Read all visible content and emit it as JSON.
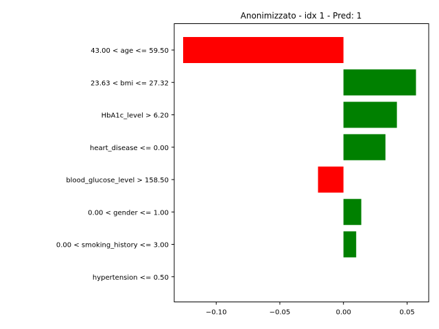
{
  "chart_data": {
    "type": "bar",
    "orientation": "horizontal",
    "title": "Anonimizzato - idx 1 - Pred: 1",
    "xlabel": "",
    "ylabel": "",
    "categories": [
      "43.00 < age <= 59.50",
      "23.63 < bmi <= 27.32",
      "HbA1c_level > 6.20",
      "heart_disease <= 0.00",
      "blood_glucose_level > 158.50",
      "0.00 < gender <= 1.00",
      "0.00 < smoking_history <= 3.00",
      "hypertension <= 0.50"
    ],
    "values": [
      -0.126,
      0.057,
      0.042,
      0.033,
      -0.02,
      0.014,
      0.01,
      0.0
    ],
    "xlim": [
      -0.133,
      0.067
    ],
    "xticks": [
      -0.1,
      -0.05,
      0.0,
      0.05
    ],
    "xtick_labels": [
      "−0.10",
      "−0.05",
      "0.00",
      "0.05"
    ],
    "colors": {
      "positive": "#008000",
      "negative": "#ff0000"
    },
    "grid": false,
    "legend": "none"
  }
}
